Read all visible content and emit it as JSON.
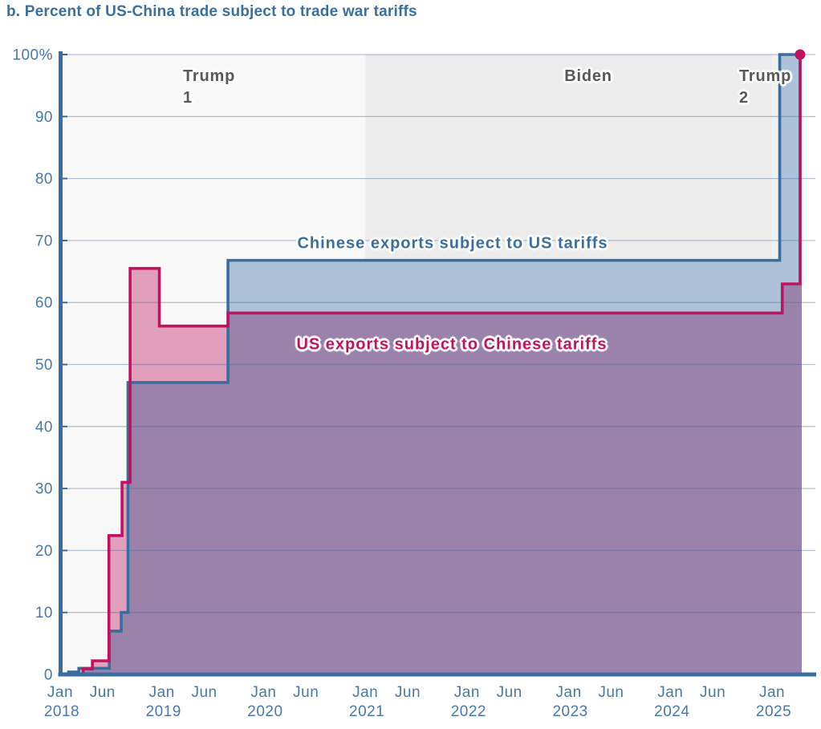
{
  "title": "b. Percent of US-China trade subject to trade war tariffs",
  "axis": {
    "color": "#3a6c9d",
    "label_color": "#4879aa",
    "grid_color": "rgba(61,99,155,0.38)"
  },
  "chart_data": {
    "type": "area",
    "subtype": "step-after",
    "title": "b. Percent of US-China trade subject to trade war tariffs",
    "x_unit": "months since Jan 2018",
    "ylim": [
      0,
      100
    ],
    "grid": "horizontal lines every 10%",
    "legend_position": "inline labels on chart",
    "y_ticks": [
      {
        "value": 0,
        "label": "0"
      },
      {
        "value": 10,
        "label": "10"
      },
      {
        "value": 20,
        "label": "20"
      },
      {
        "value": 30,
        "label": "30"
      },
      {
        "value": 40,
        "label": "40"
      },
      {
        "value": 50,
        "label": "50"
      },
      {
        "value": 60,
        "label": "60"
      },
      {
        "value": 70,
        "label": "70"
      },
      {
        "value": 80,
        "label": "80"
      },
      {
        "value": 90,
        "label": "90"
      },
      {
        "value": 100,
        "label": "100%"
      }
    ],
    "x_ticks": [
      {
        "m": 0,
        "label": "Jan",
        "year": "2018"
      },
      {
        "m": 5,
        "label": "Jun"
      },
      {
        "m": 12,
        "label": "Jan",
        "year": "2019"
      },
      {
        "m": 17,
        "label": "Jun"
      },
      {
        "m": 24,
        "label": "Jan",
        "year": "2020"
      },
      {
        "m": 29,
        "label": "Jun"
      },
      {
        "m": 36,
        "label": "Jan",
        "year": "2021"
      },
      {
        "m": 41,
        "label": "Jun"
      },
      {
        "m": 48,
        "label": "Jan",
        "year": "2022"
      },
      {
        "m": 53,
        "label": "Jun"
      },
      {
        "m": 60,
        "label": "Jan",
        "year": "2023"
      },
      {
        "m": 65,
        "label": "Jun"
      },
      {
        "m": 72,
        "label": "Jan",
        "year": "2024"
      },
      {
        "m": 77,
        "label": "Jun"
      },
      {
        "m": 84,
        "label": "Jan",
        "year": "2025"
      }
    ],
    "eras": [
      {
        "label": "Trump 1",
        "label_line1": "Trump",
        "label_line2": "1",
        "start": "Jan 2018",
        "end": "Jan 2021",
        "start_m": 0,
        "end_m": 36,
        "bg": "#f8f8f8"
      },
      {
        "label": "Biden",
        "label_line1": "Biden",
        "label_line2": "",
        "start": "Jan 2021",
        "end": "Jan 2025",
        "start_m": 36,
        "end_m": 84,
        "bg": "#ececec"
      },
      {
        "label": "Trump 2",
        "label_line1": "Trump",
        "label_line2": "2",
        "start": "Jan 2025",
        "end": "Apr 2025",
        "start_m": 84,
        "end_m": 87.5,
        "bg": "#f1f1f1"
      }
    ],
    "series": [
      {
        "name": "Chinese exports subject to US tariffs",
        "color": "#3a6c9d",
        "fill": "#adc2d8",
        "end_m": 87.5,
        "points": [
          {
            "date": "Jan 2018",
            "m": 0,
            "value": 0.1
          },
          {
            "date": "Feb 2018",
            "m": 1,
            "value": 0.4
          },
          {
            "date": "Mar 2018",
            "m": 2.2,
            "value": 1
          },
          {
            "date": "Jul 2018",
            "m": 5.8,
            "value": 7
          },
          {
            "date": "Aug 2018",
            "m": 7.2,
            "value": 10
          },
          {
            "date": "Sep 2018",
            "m": 8,
            "value": 47.1
          },
          {
            "date": "Sep 2019",
            "m": 19.8,
            "value": 66.8
          },
          {
            "date": "Feb 2025",
            "m": 84.9,
            "value": 100
          }
        ]
      },
      {
        "name": "US exports subject to Chinese tariffs",
        "color": "#c1125f",
        "fill": "#e19fbc",
        "end_m": 87.5,
        "end_dot": true,
        "points": [
          {
            "date": "Jan 2018",
            "m": 0,
            "value": 0
          },
          {
            "date": "Apr 2018",
            "m": 2.7,
            "value": 0.9
          },
          {
            "date": "Apr 2018",
            "m": 3.8,
            "value": 2.2
          },
          {
            "date": "Jul 2018",
            "m": 5.75,
            "value": 22.4
          },
          {
            "date": "Aug 2018",
            "m": 7.3,
            "value": 31
          },
          {
            "date": "Sep 2018",
            "m": 8.25,
            "value": 65.5
          },
          {
            "date": "Jan 2019",
            "m": 11.7,
            "value": 56.2
          },
          {
            "date": "Sep 2019",
            "m": 19.8,
            "value": 58.3
          },
          {
            "date": "Feb 2025",
            "m": 85.2,
            "value": 63
          },
          {
            "date": "Apr 2025",
            "m": 87.3,
            "value": 100
          }
        ]
      }
    ],
    "overlap_fill": "#9b82ab",
    "end_dot": {
      "date": "Apr 2025",
      "value": 100,
      "color": "#c1125f"
    }
  }
}
